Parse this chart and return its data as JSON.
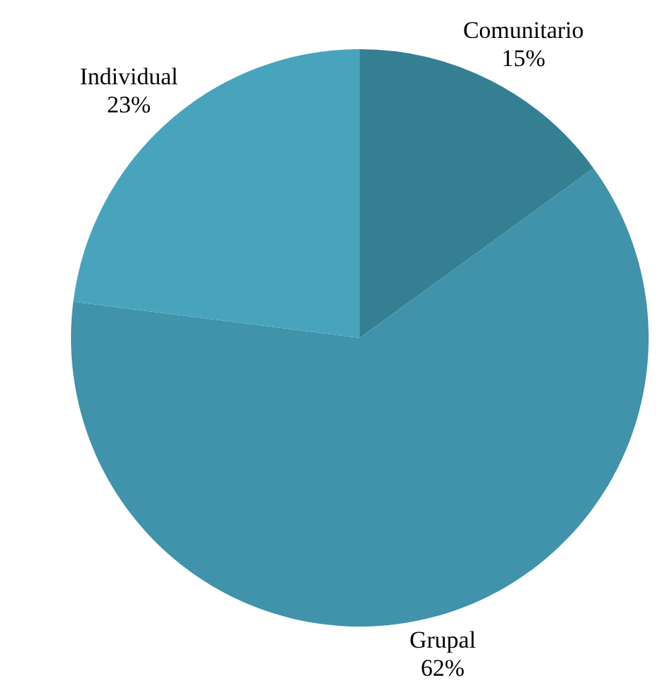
{
  "chart_data": {
    "type": "pie",
    "categories": [
      "Comunitario",
      "Grupal",
      "Individual"
    ],
    "values": [
      15,
      62,
      23
    ],
    "value_labels": [
      "15%",
      "62%",
      "23%"
    ],
    "colors": [
      "#357f93",
      "#4093aa",
      "#48a4bd"
    ],
    "legend": false
  }
}
